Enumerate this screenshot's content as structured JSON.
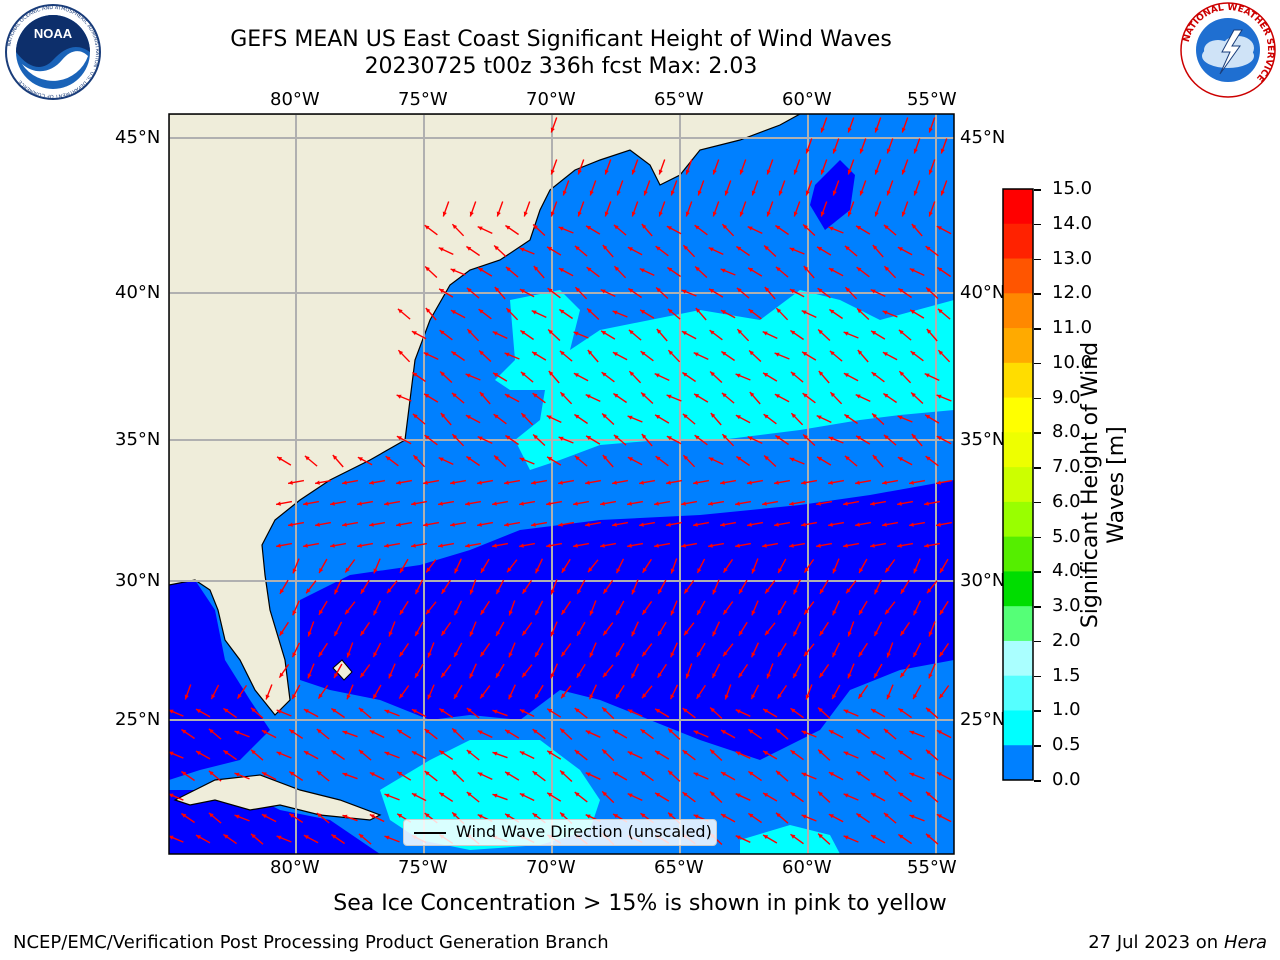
{
  "title": {
    "line1": "GEFS MEAN US East Coast Significant Height of Wind Waves",
    "line2": "20230725 t00z 336h fcst   Max: 2.03"
  },
  "map": {
    "lon_labels": [
      "80°W",
      "75°W",
      "70°W",
      "65°W",
      "60°W",
      "55°W"
    ],
    "lat_labels": [
      "45°N",
      "40°N",
      "35°N",
      "30°N",
      "25°N"
    ],
    "land_color": "#efedda",
    "sea_colors": {
      "0.0-0.5": "#0000ff",
      "0.5-1.0": "#0080ff",
      "1.0-1.5": "#00ffff",
      "1.5-2.0": "#40ffff"
    },
    "arrow_color": "#ff0000",
    "legend": "Wind Wave Direction (unscaled)"
  },
  "colorbar": {
    "label": "Significant Height of Wind Waves [m]",
    "label_line1": "Significant Height of Wind",
    "label_line2": "Waves [m]",
    "ticks": [
      "15.0",
      "14.0",
      "13.0",
      "12.0",
      "11.0",
      "10.0",
      "9.0",
      "8.0",
      "7.0",
      "6.0",
      "5.0",
      "4.0",
      "3.0",
      "2.0",
      "1.5",
      "1.0",
      "0.5",
      "0.0"
    ],
    "colors": [
      "#ff0000",
      "#ff2200",
      "#ff5500",
      "#ff8800",
      "#ffaa00",
      "#ffdd00",
      "#ffff00",
      "#eeff00",
      "#ccff00",
      "#99ff00",
      "#55ee00",
      "#00dd00",
      "#55ff77",
      "#aaffff",
      "#55ffff",
      "#00ffff",
      "#0080ff",
      "#0000ff"
    ]
  },
  "logos": {
    "left_text": "NOAA",
    "left_ring": "NATIONAL OCEANIC AND ATMOSPHERIC ADMINISTRATION · U.S. DEPARTMENT OF COMMERCE",
    "right_ring": "NATIONAL WEATHER SERVICE"
  },
  "footer": {
    "note": "Sea Ice Concentration > 15% is shown in pink to yellow",
    "credit_left": "NCEP/EMC/Verification Post Processing Product Generation Branch",
    "credit_date": "27 Jul 2023 on ",
    "credit_host": "Hera"
  }
}
